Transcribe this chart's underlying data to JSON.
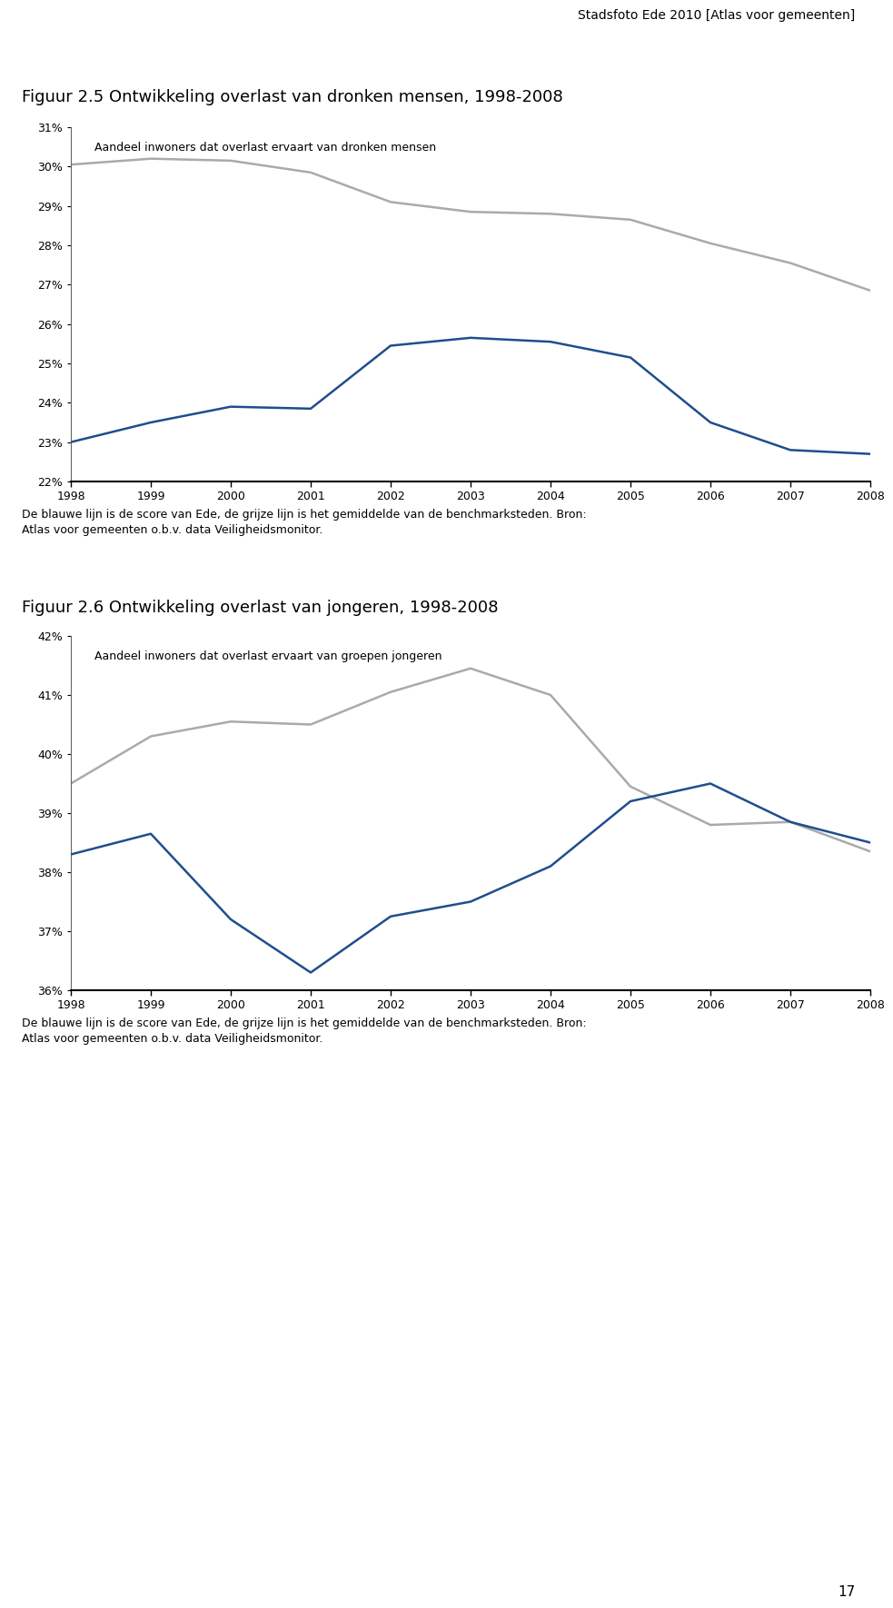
{
  "header_text": "Stadsfoto Ede 2010 [Atlas voor gemeenten]",
  "page_number": "17",
  "chart1": {
    "title": "Figuur 2.5 Ontwikkeling overlast van dronken mensen, 1998-2008",
    "subtitle": "Aandeel inwoners dat overlast ervaart van dronken mensen",
    "years": [
      1998,
      1999,
      2000,
      2001,
      2002,
      2003,
      2004,
      2005,
      2006,
      2007,
      2008
    ],
    "blue_line": [
      23.0,
      23.5,
      23.9,
      23.85,
      25.45,
      25.65,
      25.55,
      25.15,
      23.5,
      22.8,
      22.7
    ],
    "grey_line": [
      30.05,
      30.2,
      30.15,
      29.85,
      29.1,
      28.85,
      28.8,
      28.65,
      28.05,
      27.55,
      26.85
    ],
    "ylim_min": 22,
    "ylim_max": 31,
    "yticks": [
      22,
      23,
      24,
      25,
      26,
      27,
      28,
      29,
      30,
      31
    ],
    "ytick_labels": [
      "22%",
      "23%",
      "24%",
      "25%",
      "26%",
      "27%",
      "28%",
      "29%",
      "30%",
      "31%"
    ],
    "footer": "De blauwe lijn is de score van Ede, de grijze lijn is het gemiddelde van de benchmarksteden. Bron:\nAtlas voor gemeenten o.b.v. data Veiligheidsmonitor."
  },
  "chart2": {
    "title": "Figuur 2.6 Ontwikkeling overlast van jongeren, 1998-2008",
    "subtitle": "Aandeel inwoners dat overlast ervaart van groepen jongeren",
    "years": [
      1998,
      1999,
      2000,
      2001,
      2002,
      2003,
      2004,
      2005,
      2006,
      2007,
      2008
    ],
    "blue_line": [
      38.3,
      38.65,
      37.2,
      36.3,
      37.25,
      37.5,
      38.1,
      39.2,
      39.5,
      38.85,
      38.5
    ],
    "grey_line": [
      39.5,
      40.3,
      40.55,
      40.5,
      41.05,
      41.45,
      41.0,
      39.45,
      38.8,
      38.85,
      38.35
    ],
    "ylim_min": 36,
    "ylim_max": 42,
    "yticks": [
      36,
      37,
      38,
      39,
      40,
      41,
      42
    ],
    "ytick_labels": [
      "36%",
      "37%",
      "38%",
      "39%",
      "40%",
      "41%",
      "42%"
    ],
    "footer": "De blauwe lijn is de score van Ede, de grijze lijn is het gemiddelde van de benchmarksteden. Bron:\nAtlas voor gemeenten o.b.v. data Veiligheidsmonitor."
  },
  "blue_color": "#1f4e8c",
  "grey_color": "#aaaaaa",
  "title_bg_color": "#d9d9d9",
  "footer_bg_color": "#d9d9d9",
  "plot_bg_color": "#ffffff",
  "line_width": 1.8,
  "title_fontsize": 13,
  "subtitle_fontsize": 9,
  "tick_fontsize": 9,
  "footer_fontsize": 9,
  "header_fontsize": 10
}
